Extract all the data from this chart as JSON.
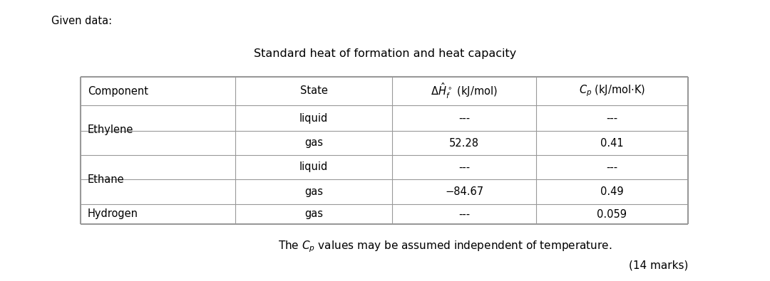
{
  "given_data_label": "Given data:",
  "table_title": "Standard heat of formation and heat capacity",
  "footer_text": "The $C_p$ values may be assumed independent of temperature.",
  "marks_text": "(14 marks)",
  "bg_color": "#ffffff",
  "text_color": "#000000",
  "line_color": "#999999",
  "states": [
    "liquid",
    "gas",
    "liquid",
    "gas",
    "gas"
  ],
  "delta_hf": [
    "---",
    "52.28",
    "---",
    "−84.67",
    "---"
  ],
  "cp_vals": [
    "---",
    "0.41",
    "---",
    "0.49",
    "0.059"
  ],
  "components": [
    "Ethylene",
    "Ethane",
    "Hydrogen"
  ],
  "lw_outer": 1.5,
  "lw_inner": 0.8
}
